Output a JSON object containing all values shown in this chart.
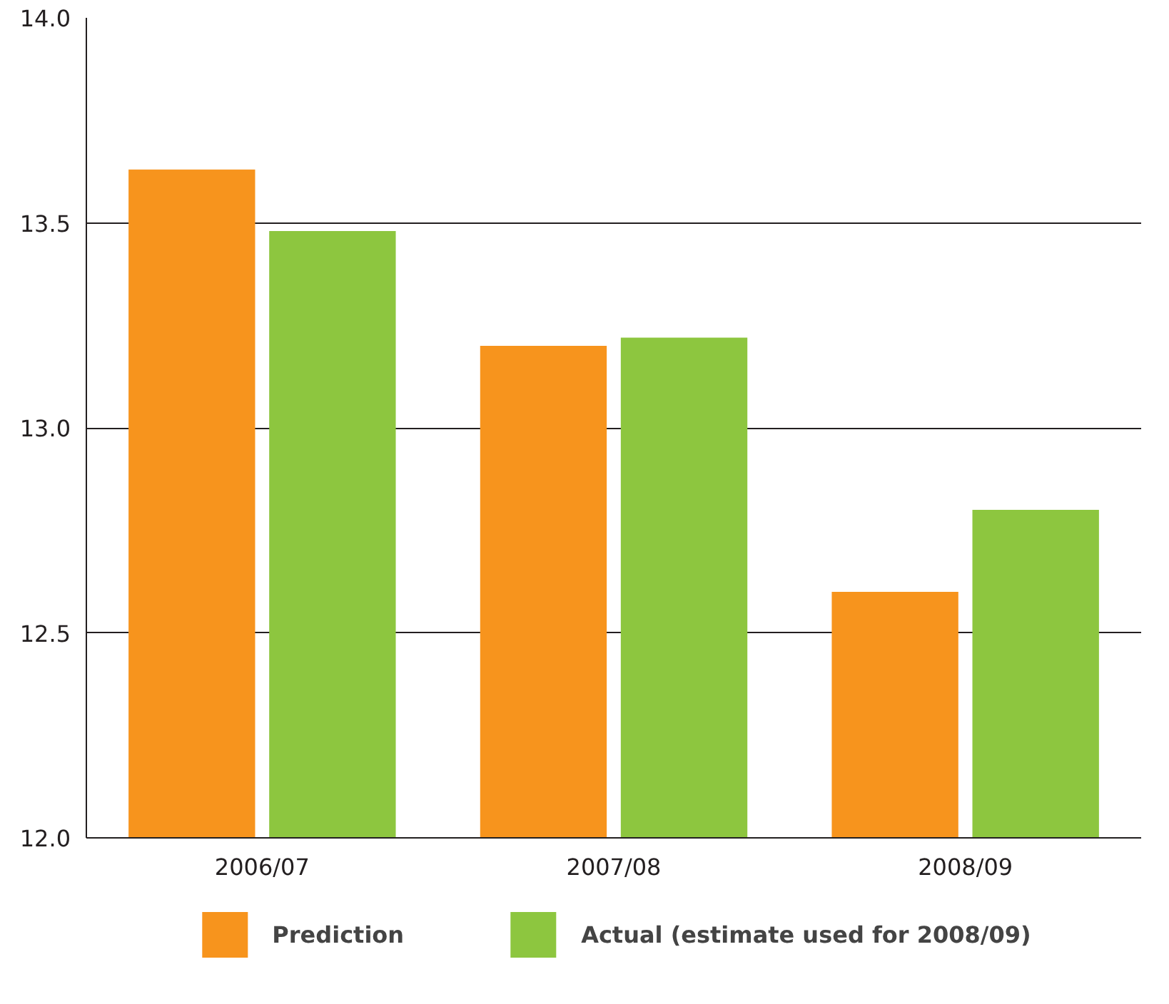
{
  "chart_data": {
    "type": "bar",
    "categories": [
      "2006/07",
      "2007/08",
      "2008/09"
    ],
    "series": [
      {
        "name": "Prediction",
        "color": "#f7941d",
        "values": [
          13.63,
          13.2,
          12.6
        ]
      },
      {
        "name": "Actual (estimate used for 2008/09)",
        "color": "#8dc63f",
        "values": [
          13.48,
          13.22,
          12.8
        ]
      }
    ],
    "ylim": [
      12.0,
      14.0
    ],
    "yticks": [
      {
        "value": 12.0,
        "label": "12.0"
      },
      {
        "value": 12.5,
        "label": "12.5"
      },
      {
        "value": 13.0,
        "label": "13.0"
      },
      {
        "value": 13.5,
        "label": "13.5"
      },
      {
        "value": 14.0,
        "label": "14.0"
      }
    ],
    "grid": "y",
    "legend": "bottom"
  }
}
